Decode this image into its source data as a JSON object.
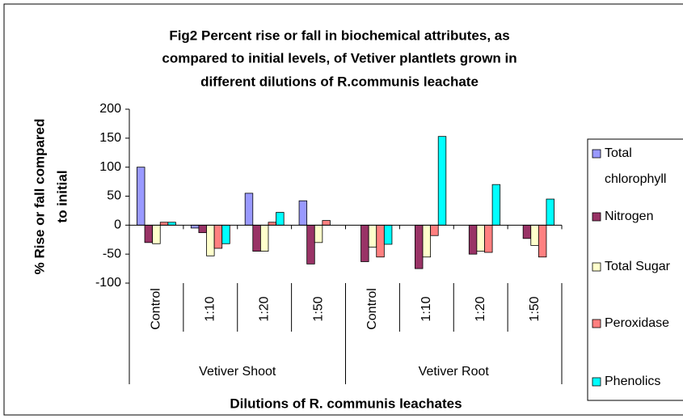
{
  "chart_data": {
    "type": "bar",
    "title": [
      "Fig2 Percent rise or fall in biochemical attributes, as",
      "compared to initial levels, of Vetiver plantlets grown in",
      "different dilutions of R.communis leachate"
    ],
    "y_label": [
      "% Rise or fall compared",
      "to initial"
    ],
    "x_label": "Dilutions of R. communis leachates",
    "categories": [
      "Control",
      "1:10",
      "1:20",
      "1:50",
      "Control",
      "1:10",
      "1:20",
      "1:50"
    ],
    "groups": [
      "Vetiver Shoot",
      "Vetiver Root"
    ],
    "series": [
      {
        "name": "Total chlorophyll",
        "color": "#9999ff",
        "values": [
          100,
          -5,
          55,
          42,
          0,
          0,
          0,
          0
        ]
      },
      {
        "name": "Nitrogen",
        "color": "#993366",
        "values": [
          -30,
          -13,
          -45,
          -67,
          -63,
          -75,
          -50,
          -23
        ]
      },
      {
        "name": "Total Sugar",
        "color": "#ffffcc",
        "values": [
          -32,
          -53,
          -45,
          -30,
          -38,
          -55,
          -45,
          -35
        ]
      },
      {
        "name": "Peroxidase",
        "color": "#ff8080",
        "values": [
          5,
          -40,
          5,
          8,
          -55,
          -18,
          -47,
          -55
        ]
      },
      {
        "name": "Phenolics",
        "color": "#00ffff",
        "values": [
          5,
          -32,
          22,
          0,
          -33,
          153,
          70,
          45
        ]
      }
    ],
    "ylim": [
      -100,
      200
    ],
    "yticks": [
      -100,
      -50,
      0,
      50,
      100,
      150,
      200
    ]
  }
}
